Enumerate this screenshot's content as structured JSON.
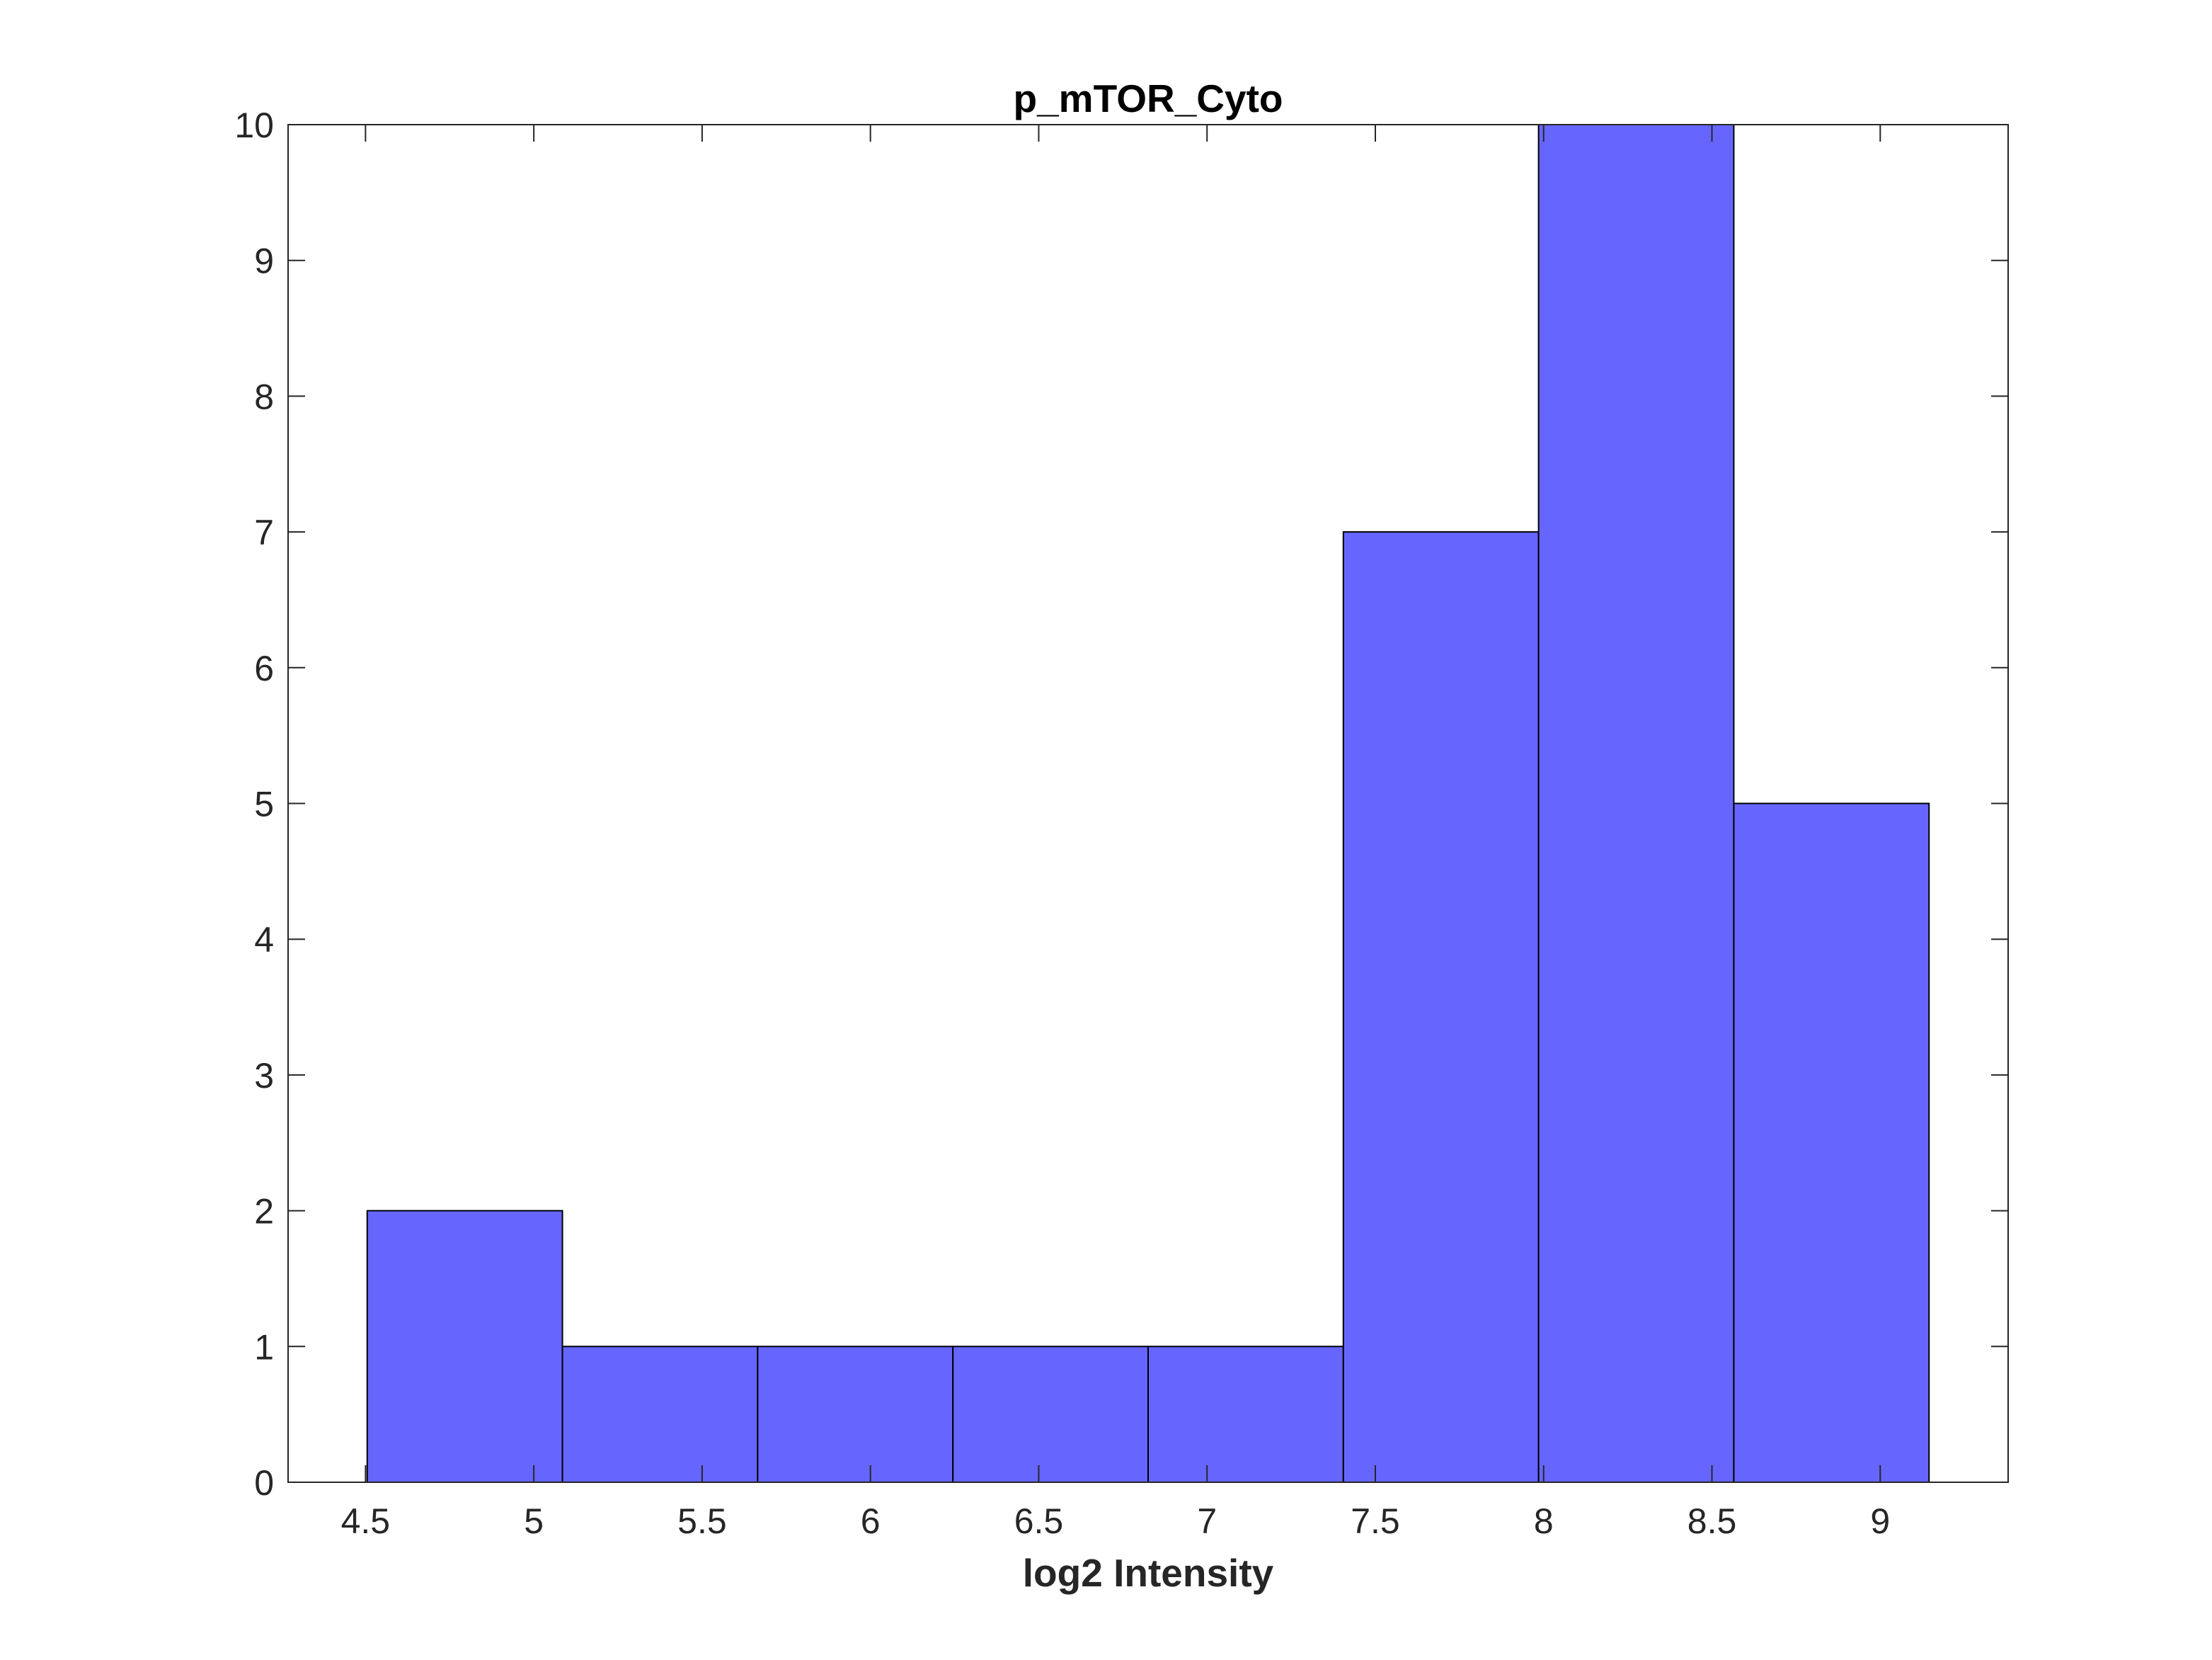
{
  "chart_data": {
    "type": "bar",
    "histogram": true,
    "title": "p_mTOR_Cyto",
    "xlabel": "log2 Intensity",
    "ylabel": "",
    "xlim": [
      4.27,
      9.38
    ],
    "ylim": [
      0,
      10
    ],
    "xticks": [
      "4.5",
      "5",
      "5.5",
      "6",
      "6.5",
      "7",
      "7.5",
      "8",
      "8.5",
      "9"
    ],
    "yticks": [
      "0",
      "1",
      "2",
      "3",
      "4",
      "5",
      "6",
      "7",
      "8",
      "9",
      "10"
    ],
    "bin_edges": [
      4.505,
      5.085,
      5.665,
      6.245,
      6.825,
      7.405,
      7.985,
      8.565,
      9.145
    ],
    "values": [
      2,
      1,
      1,
      1,
      1,
      7,
      10,
      5
    ],
    "grid": false,
    "legend": "none",
    "colors": {
      "bar_fill": "#6666ff",
      "bar_edge": "#000000",
      "axis": "#262626"
    }
  }
}
